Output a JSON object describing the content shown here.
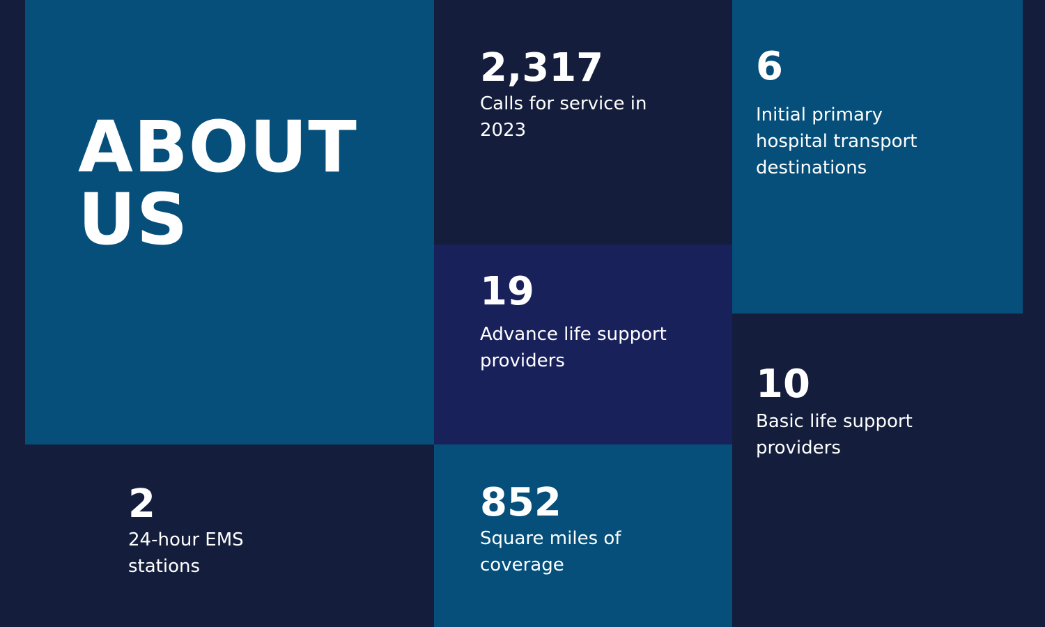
{
  "colors": {
    "background": "#141e3c",
    "teal_blue": "#054f7a",
    "navy": "#141e3c",
    "indigo": "#19215b",
    "text": "#ffffff"
  },
  "about": {
    "title_line1": "ABOUT",
    "title_line2": "US"
  },
  "stats": {
    "calls": {
      "number": "2,317",
      "label_line1": "Calls for service in",
      "label_line2": "2023"
    },
    "destinations": {
      "number": "6",
      "label_line1": "Initial primary",
      "label_line2": "hospital transport",
      "label_line3": "destinations"
    },
    "als": {
      "number": "19",
      "label_line1": "Advance life support",
      "label_line2": "providers"
    },
    "bls": {
      "number": "10",
      "label_line1": "Basic life support",
      "label_line2": "providers"
    },
    "stations": {
      "number": "2",
      "label_line1": "24-hour EMS",
      "label_line2": "stations"
    },
    "coverage": {
      "number": "852",
      "label_line1": "Square miles of",
      "label_line2": "coverage"
    }
  }
}
